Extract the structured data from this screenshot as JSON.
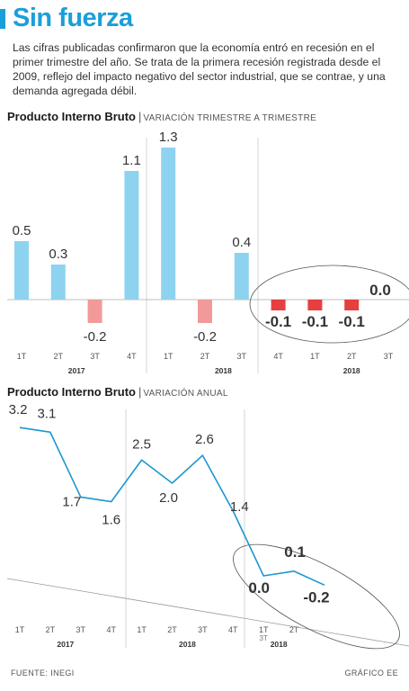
{
  "header": {
    "title": "Sin fuerza",
    "intro": "Las cifras publicadas confirmaron que la economía entró en recesión en el primer trimestre del año. Se trata de la primera recesión registrada desde el 2009, reflejo del impacto negativo del sector industrial, que se contrae, y una demanda agregada débil."
  },
  "footer": {
    "source": "FUENTE: INEGI",
    "credit": "GRÁFICO EE"
  },
  "colors": {
    "accent": "#1a9fd9",
    "bar_positive": "#8dd3ef",
    "bar_negative_light": "#f29a9a",
    "bar_negative": "#e63f3f",
    "line": "#1d97cf"
  },
  "chart_data": [
    {
      "type": "bar",
      "title": "Producto Interno Bruto",
      "subtitle": "VARIACIÓN TRIMESTRE A TRIMESTRE",
      "categories": [
        "1T",
        "2T",
        "3T",
        "4T",
        "1T",
        "2T",
        "3T",
        "4T",
        "1T",
        "2T",
        "3T"
      ],
      "years": [
        {
          "label": "2017",
          "span": [
            0,
            3
          ]
        },
        {
          "label": "2018",
          "span": [
            4,
            7
          ]
        },
        {
          "label": "2018",
          "span": [
            8,
            10
          ]
        }
      ],
      "values": [
        0.5,
        0.3,
        -0.2,
        1.1,
        1.3,
        -0.2,
        0.4,
        -0.1,
        -0.1,
        -0.1,
        0.0
      ],
      "labels": [
        "0.5",
        "0.3",
        "-0.2",
        "1.1",
        "1.3",
        "-0.2",
        "0.4",
        "-0.1",
        "-0.1",
        "-0.1",
        "0.0"
      ],
      "highlighted": [
        7,
        8,
        9,
        10
      ],
      "ylim": [
        -0.2,
        1.3
      ]
    },
    {
      "type": "line",
      "title": "Producto Interno Bruto",
      "subtitle": "VARIACIÓN ANUAL",
      "categories": [
        "1T",
        "2T",
        "3T",
        "4T",
        "1T",
        "2T",
        "3T",
        "4T",
        "1T",
        "2T"
      ],
      "extra_tick_label": "3T",
      "years": [
        {
          "label": "2017",
          "span": [
            0,
            3
          ]
        },
        {
          "label": "2018",
          "span": [
            4,
            7
          ]
        },
        {
          "label": "2018",
          "span": [
            8,
            9
          ]
        }
      ],
      "values": [
        3.2,
        3.1,
        1.7,
        1.6,
        2.5,
        2.0,
        2.6,
        1.4,
        0.0,
        0.1,
        -0.2
      ],
      "labels": [
        "3.2",
        "3.1",
        "1.7",
        "1.6",
        "2.5",
        "2.0",
        "2.6",
        "1.4",
        "0.0",
        "0.1",
        "-0.2"
      ],
      "highlighted": [
        8,
        9,
        10
      ],
      "ylim": [
        -0.2,
        3.2
      ]
    }
  ]
}
